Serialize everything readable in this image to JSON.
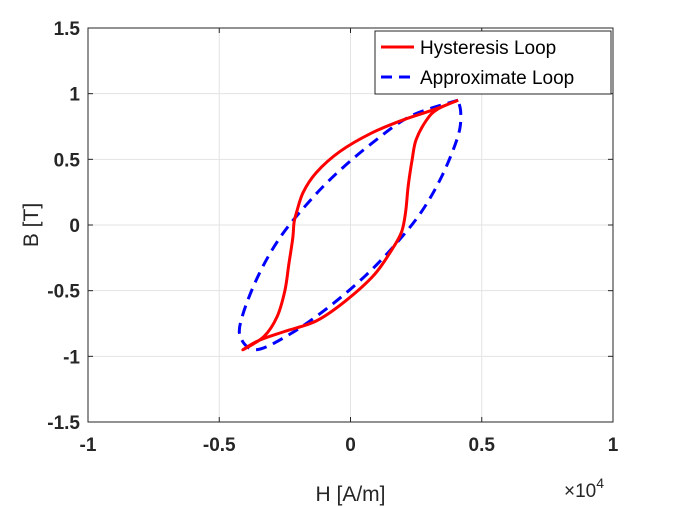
{
  "chart_data": {
    "type": "line",
    "xlabel": "H [A/m]",
    "ylabel": "B [T]",
    "xlim": [
      -10000,
      10000
    ],
    "ylim": [
      -1.5,
      1.5
    ],
    "x_ticks": [
      -10000,
      -5000,
      0,
      5000,
      10000
    ],
    "x_tick_labels": [
      "-1",
      "-0.5",
      "0",
      "0.5",
      "1"
    ],
    "y_ticks": [
      -1.5,
      -1,
      -0.5,
      0,
      0.5,
      1,
      1.5
    ],
    "y_tick_labels": [
      "-1.5",
      "-1",
      "-0.5",
      "0",
      "0.5",
      "1",
      "1.5"
    ],
    "x_exponent_label": {
      "times": "×10",
      "power": "4"
    },
    "grid": true,
    "legend_position": "top-right",
    "series": [
      {
        "name": "Hysteresis Loop",
        "color": "#ff0000",
        "style": "solid",
        "x": [
          4100,
          3200,
          2000,
          800,
          -400,
          -1300,
          -1800,
          -2050,
          -2150,
          -2200,
          -2350,
          -2500,
          -2800,
          -3300,
          -4100,
          -3500,
          -2500,
          -1300,
          -200,
          900,
          1600,
          1950,
          2100,
          2200,
          2350,
          2500,
          2900,
          3300,
          4100
        ],
        "y": [
          0.95,
          0.88,
          0.8,
          0.7,
          0.56,
          0.4,
          0.25,
          0.1,
          0.02,
          -0.1,
          -0.3,
          -0.5,
          -0.7,
          -0.85,
          -0.95,
          -0.88,
          -0.81,
          -0.73,
          -0.58,
          -0.38,
          -0.18,
          -0.05,
          0.1,
          0.3,
          0.5,
          0.65,
          0.8,
          0.88,
          0.95
        ]
      },
      {
        "name": "Approximate Loop",
        "color": "#0000ff",
        "style": "dashed",
        "x": [
          4100,
          2300,
          800,
          -600,
          -1700,
          -2700,
          -3500,
          -4100,
          -4200,
          -3600,
          -2300,
          -800,
          600,
          1700,
          2700,
          3500,
          4100,
          4200,
          4100
        ],
        "y": [
          0.95,
          0.83,
          0.62,
          0.38,
          0.15,
          -0.1,
          -0.38,
          -0.68,
          -0.85,
          -0.95,
          -0.83,
          -0.62,
          -0.38,
          -0.15,
          0.1,
          0.38,
          0.68,
          0.85,
          0.95
        ]
      }
    ]
  }
}
